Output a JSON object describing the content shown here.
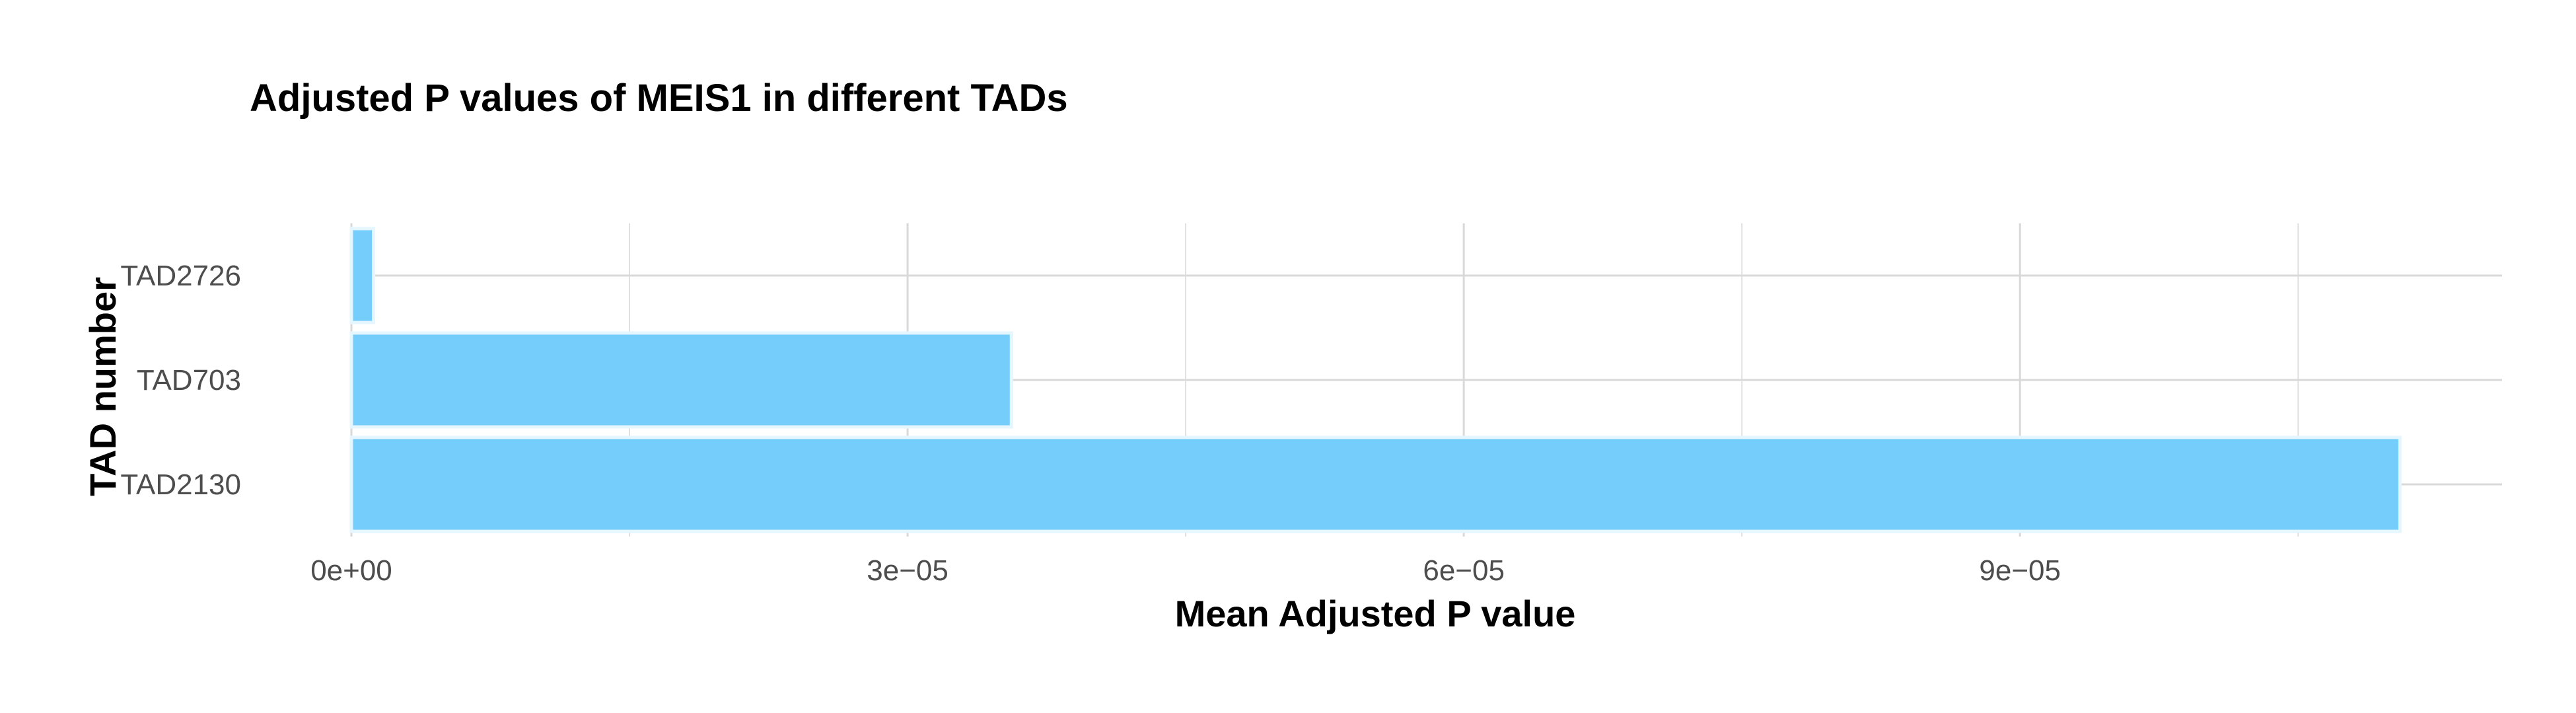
{
  "chart_data": {
    "type": "bar",
    "orientation": "horizontal",
    "title": "Adjusted P values of MEIS1 in different TADs",
    "xlabel": "Mean Adjusted P value",
    "ylabel": "TAD number",
    "categories": [
      "TAD2726",
      "TAD703",
      "TAD2130"
    ],
    "values": [
      1.2e-06,
      3.56e-05,
      0.0001105
    ],
    "xlim": [
      0,
      0.000116
    ],
    "x_ticks": [
      0,
      3e-05,
      6e-05,
      9e-05
    ],
    "x_tick_labels": [
      "0e+00",
      "3e−05",
      "6e−05",
      "9e−05"
    ],
    "grid": true,
    "legend": "none",
    "colors": {
      "bar": "#74CDFB",
      "bar_edge": "#E6F6FF",
      "grid": "#D9D9D9",
      "tick_text": "#4D4D4D"
    }
  }
}
